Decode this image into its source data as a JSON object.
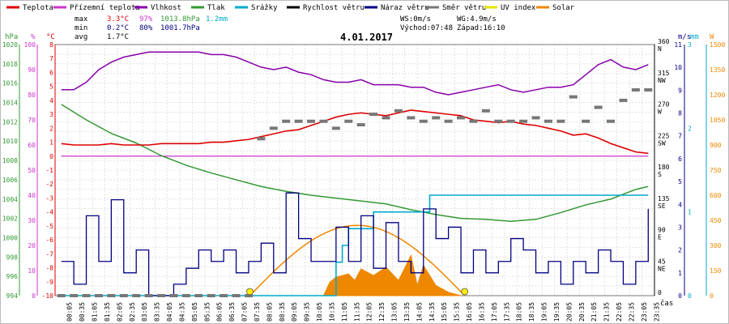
{
  "chart_data": {
    "type": "line",
    "date": "4.01.2017",
    "legend": [
      {
        "name": "Teplota",
        "color": "#dd0000"
      },
      {
        "name": "Přízemní teplota",
        "color": "#cc33cc"
      },
      {
        "name": "Vlhkost",
        "color": "#8800aa"
      },
      {
        "name": "Tlak",
        "color": "#339933"
      },
      {
        "name": "Srážky",
        "color": "#00aacc"
      },
      {
        "name": "Rychlost větru",
        "color": "#000000"
      },
      {
        "name": "Náraz větru",
        "color": "#000080"
      },
      {
        "name": "Směr větru",
        "color": "#777777"
      },
      {
        "name": "UV index",
        "color": "#e6e600"
      },
      {
        "name": "Solar",
        "color": "#ee8800"
      }
    ],
    "stats": {
      "max_label": "max",
      "min_label": "min",
      "avg_label": "avg",
      "max": {
        "temp": "3.3°C",
        "hum": "97%",
        "pres": "1013.8hPa",
        "rain": "1.2mm"
      },
      "min": {
        "temp": "0.2°C",
        "hum": "80%",
        "pres": "1001.7hPa"
      },
      "avg": {
        "temp": "1.7°C"
      }
    },
    "info": {
      "ws": "WS:0m/s",
      "wg": "WG:4.9m/s",
      "sunrise": "Východ:07:48",
      "sunset": "Západ:16:10"
    },
    "units": {
      "pres": "hPa",
      "hum": "%",
      "temp": "°C",
      "wind": "m/s",
      "rain": "mm",
      "solar": "W",
      "time": "čas"
    },
    "axes": {
      "pressure": {
        "min": 994,
        "max": 1020,
        "step": 2,
        "color": "#339933"
      },
      "humidity": {
        "min": 0,
        "max": 100,
        "step": 10,
        "color": "#cc33cc"
      },
      "temperature": {
        "min": -10,
        "max": 8,
        "step": 1,
        "color": "#dd0000"
      },
      "direction": {
        "ticks": [
          {
            "value": 0,
            "label": "0",
            "dir": ""
          },
          {
            "value": 45,
            "label": "45",
            "dir": "NE"
          },
          {
            "value": 90,
            "label": "90",
            "dir": "E"
          },
          {
            "value": 135,
            "label": "135",
            "dir": "SE"
          },
          {
            "value": 180,
            "label": "180",
            "dir": "S"
          },
          {
            "value": 225,
            "label": "225",
            "dir": "SW"
          },
          {
            "value": 270,
            "label": "270",
            "dir": "W"
          },
          {
            "value": 315,
            "label": "315",
            "dir": "NW"
          },
          {
            "value": 360,
            "label": "360",
            "dir": "N"
          }
        ]
      },
      "wind": {
        "min": 0,
        "max": 11,
        "step": 1
      },
      "rain": {
        "min": 0,
        "max": 3,
        "step": 1
      },
      "solar": {
        "min": 0,
        "max": 1500,
        "step": 150
      }
    },
    "x_labels": [
      "00:05",
      "00:35",
      "01:05",
      "01:35",
      "02:05",
      "02:35",
      "03:05",
      "03:35",
      "04:05",
      "04:35",
      "05:05",
      "05:35",
      "06:05",
      "06:35",
      "07:05",
      "07:35",
      "08:05",
      "08:35",
      "09:05",
      "09:35",
      "10:05",
      "10:35",
      "11:05",
      "11:35",
      "12:05",
      "12:35",
      "13:05",
      "13:35",
      "14:05",
      "14:35",
      "15:05",
      "15:35",
      "16:05",
      "16:35",
      "17:05",
      "17:35",
      "18:05",
      "18:35",
      "19:05",
      "19:35",
      "20:05",
      "20:35",
      "21:05",
      "21:35",
      "22:05",
      "22:35",
      "23:05",
      "23:35"
    ],
    "series_points": {
      "temperature": [
        [
          0,
          0.9
        ],
        [
          1,
          0.8
        ],
        [
          2,
          0.8
        ],
        [
          3,
          0.8
        ],
        [
          4,
          0.9
        ],
        [
          5,
          0.8
        ],
        [
          6,
          0.8
        ],
        [
          7,
          0.8
        ],
        [
          8,
          0.9
        ],
        [
          9,
          0.9
        ],
        [
          10,
          0.9
        ],
        [
          11,
          0.9
        ],
        [
          12,
          1.0
        ],
        [
          13,
          1.0
        ],
        [
          14,
          1.1
        ],
        [
          15,
          1.2
        ],
        [
          16,
          1.4
        ],
        [
          17,
          1.6
        ],
        [
          18,
          1.8
        ],
        [
          19,
          1.9
        ],
        [
          20,
          2.2
        ],
        [
          21,
          2.5
        ],
        [
          22,
          2.8
        ],
        [
          23,
          3.0
        ],
        [
          24,
          3.1
        ],
        [
          25,
          3.0
        ],
        [
          26,
          2.9
        ],
        [
          27,
          3.1
        ],
        [
          28,
          3.3
        ],
        [
          29,
          3.2
        ],
        [
          30,
          3.1
        ],
        [
          31,
          3.0
        ],
        [
          32,
          2.9
        ],
        [
          33,
          2.6
        ],
        [
          34,
          2.5
        ],
        [
          35,
          2.4
        ],
        [
          36,
          2.5
        ],
        [
          37,
          2.3
        ],
        [
          38,
          2.2
        ],
        [
          39,
          2.0
        ],
        [
          40,
          1.8
        ],
        [
          41,
          1.5
        ],
        [
          42,
          1.6
        ],
        [
          43,
          1.3
        ],
        [
          44,
          0.9
        ],
        [
          45,
          0.6
        ],
        [
          46,
          0.3
        ],
        [
          47,
          0.2
        ]
      ],
      "humidity": [
        [
          0,
          82
        ],
        [
          1,
          82
        ],
        [
          2,
          85
        ],
        [
          3,
          90
        ],
        [
          4,
          93
        ],
        [
          5,
          95
        ],
        [
          6,
          96
        ],
        [
          7,
          97
        ],
        [
          8,
          97
        ],
        [
          9,
          97
        ],
        [
          10,
          97
        ],
        [
          11,
          97
        ],
        [
          12,
          96
        ],
        [
          13,
          96
        ],
        [
          14,
          95
        ],
        [
          15,
          93
        ],
        [
          16,
          91
        ],
        [
          17,
          90
        ],
        [
          18,
          91
        ],
        [
          19,
          89
        ],
        [
          20,
          88
        ],
        [
          21,
          86
        ],
        [
          22,
          85
        ],
        [
          23,
          85
        ],
        [
          24,
          86
        ],
        [
          25,
          84
        ],
        [
          26,
          84
        ],
        [
          27,
          84
        ],
        [
          28,
          83
        ],
        [
          29,
          83
        ],
        [
          30,
          81
        ],
        [
          31,
          80
        ],
        [
          32,
          81
        ],
        [
          33,
          82
        ],
        [
          34,
          83
        ],
        [
          35,
          84
        ],
        [
          36,
          82
        ],
        [
          37,
          81
        ],
        [
          38,
          82
        ],
        [
          39,
          83
        ],
        [
          40,
          83
        ],
        [
          41,
          84
        ],
        [
          42,
          88
        ],
        [
          43,
          92
        ],
        [
          44,
          94
        ],
        [
          45,
          91
        ],
        [
          46,
          90
        ],
        [
          47,
          92
        ]
      ],
      "ground_temp": [
        [
          0,
          0.0
        ],
        [
          47,
          0.0
        ]
      ],
      "pressure": [
        [
          0,
          1013.8
        ],
        [
          2,
          1012.2
        ],
        [
          4,
          1010.8
        ],
        [
          6,
          1009.8
        ],
        [
          8,
          1008.5
        ],
        [
          10,
          1007.5
        ],
        [
          12,
          1006.7
        ],
        [
          14,
          1006.0
        ],
        [
          16,
          1005.3
        ],
        [
          18,
          1004.8
        ],
        [
          20,
          1004.4
        ],
        [
          22,
          1004.1
        ],
        [
          24,
          1003.8
        ],
        [
          26,
          1003.5
        ],
        [
          28,
          1002.9
        ],
        [
          30,
          1002.4
        ],
        [
          32,
          1002.0
        ],
        [
          34,
          1001.9
        ],
        [
          36,
          1001.7
        ],
        [
          38,
          1001.9
        ],
        [
          40,
          1002.6
        ],
        [
          42,
          1003.4
        ],
        [
          44,
          1004.0
        ],
        [
          46,
          1005.0
        ],
        [
          47,
          1005.3
        ]
      ],
      "rain_cumulative": [
        [
          0,
          0
        ],
        [
          21,
          0
        ],
        [
          22,
          0.4
        ],
        [
          22.5,
          0.6
        ],
        [
          23,
          0.8
        ],
        [
          24,
          0.8
        ],
        [
          25,
          1.0
        ],
        [
          29,
          1.0
        ],
        [
          29.5,
          1.2
        ],
        [
          47,
          1.2
        ]
      ],
      "wind_gust": [
        [
          0,
          1.5
        ],
        [
          1,
          0.5
        ],
        [
          2,
          3.5
        ],
        [
          3,
          1.5
        ],
        [
          4,
          4.2
        ],
        [
          5,
          1.0
        ],
        [
          6,
          2.0
        ],
        [
          7,
          0
        ],
        [
          8,
          0
        ],
        [
          9,
          0.5
        ],
        [
          10,
          1.2
        ],
        [
          11,
          2.0
        ],
        [
          12,
          1.5
        ],
        [
          13,
          2.0
        ],
        [
          14,
          1.0
        ],
        [
          15,
          1.5
        ],
        [
          16,
          2.3
        ],
        [
          17,
          1.0
        ],
        [
          18,
          4.5
        ],
        [
          19,
          2.5
        ],
        [
          20,
          1.5
        ],
        [
          21,
          1.5
        ],
        [
          22,
          3.0
        ],
        [
          23,
          1.5
        ],
        [
          24,
          3.5
        ],
        [
          25,
          1.2
        ],
        [
          26,
          3.2
        ],
        [
          27,
          1.5
        ],
        [
          28,
          1.0
        ],
        [
          29,
          3.8
        ],
        [
          30,
          2.5
        ],
        [
          31,
          3.0
        ],
        [
          32,
          1.0
        ],
        [
          33,
          2.0
        ],
        [
          34,
          1.0
        ],
        [
          35,
          1.5
        ],
        [
          36,
          2.5
        ],
        [
          37,
          2.0
        ],
        [
          38,
          1.0
        ],
        [
          39,
          1.5
        ],
        [
          40,
          0.5
        ],
        [
          41,
          1.5
        ],
        [
          42,
          1.0
        ],
        [
          43,
          2.0
        ],
        [
          44,
          1.5
        ],
        [
          45,
          0.5
        ],
        [
          46,
          1.5
        ],
        [
          47,
          3.8
        ]
      ],
      "wind_direction": [
        [
          0,
          0
        ],
        [
          1,
          0
        ],
        [
          2,
          0
        ],
        [
          3,
          0
        ],
        [
          4,
          0
        ],
        [
          5,
          0
        ],
        [
          6,
          0
        ],
        [
          7,
          0
        ],
        [
          8,
          0
        ],
        [
          9,
          0
        ],
        [
          10,
          0
        ],
        [
          11,
          0
        ],
        [
          12,
          0
        ],
        [
          13,
          0
        ],
        [
          14,
          0
        ],
        [
          15,
          0
        ],
        [
          16,
          225
        ],
        [
          17,
          240
        ],
        [
          18,
          250
        ],
        [
          19,
          250
        ],
        [
          20,
          250
        ],
        [
          21,
          250
        ],
        [
          22,
          240
        ],
        [
          23,
          250
        ],
        [
          24,
          245
        ],
        [
          25,
          260
        ],
        [
          26,
          255
        ],
        [
          27,
          265
        ],
        [
          28,
          255
        ],
        [
          29,
          250
        ],
        [
          30,
          255
        ],
        [
          31,
          250
        ],
        [
          32,
          255
        ],
        [
          33,
          250
        ],
        [
          34,
          265
        ],
        [
          35,
          250
        ],
        [
          36,
          250
        ],
        [
          37,
          250
        ],
        [
          38,
          255
        ],
        [
          39,
          250
        ],
        [
          40,
          250
        ],
        [
          41,
          285
        ],
        [
          42,
          250
        ],
        [
          43,
          270
        ],
        [
          44,
          250
        ],
        [
          45,
          280
        ],
        [
          46,
          295
        ],
        [
          47,
          295
        ]
      ],
      "solar": [
        [
          21,
          0
        ],
        [
          21.5,
          80
        ],
        [
          22,
          110
        ],
        [
          23,
          130
        ],
        [
          23.5,
          90
        ],
        [
          24,
          160
        ],
        [
          25,
          120
        ],
        [
          26,
          170
        ],
        [
          27,
          90
        ],
        [
          28,
          240
        ],
        [
          28.5,
          60
        ],
        [
          29,
          180
        ],
        [
          29.5,
          120
        ],
        [
          30,
          60
        ],
        [
          31,
          20
        ],
        [
          32,
          0
        ]
      ],
      "solar_curve": [
        [
          15.1,
          0
        ],
        [
          18,
          230
        ],
        [
          21,
          380
        ],
        [
          24,
          420
        ],
        [
          27,
          380
        ],
        [
          30,
          230
        ],
        [
          32.3,
          0
        ]
      ],
      "sun_markers": [
        15.1,
        32.3
      ]
    }
  }
}
